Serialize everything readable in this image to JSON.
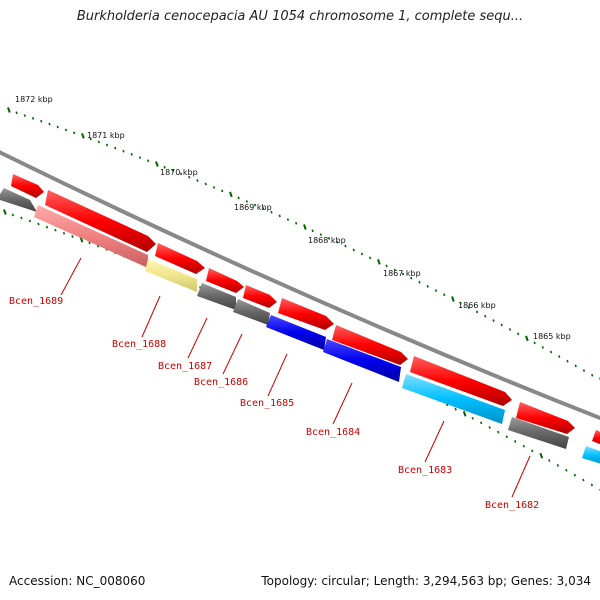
{
  "title": "Burkholderia cenocepacia AU 1054 chromosome 1, complete sequ...",
  "footer": {
    "accession": "Accession: NC_008060",
    "topology": "Topology: circular; Length: 3,294,563 bp; Genes: 3,034"
  },
  "ruler": [
    "1872 kbp",
    "1871 kbp",
    "1870 kbp",
    "1869 kbp",
    "1868 kbp",
    "1867 kbp",
    "1866 kbp",
    "1865 kbp"
  ],
  "gene_labels": [
    "Bcen_1689",
    "Bcen_1688",
    "Bcen_1687",
    "Bcen_1686",
    "Bcen_1685",
    "Bcen_1684",
    "Bcen_1683",
    "Bcen_1682"
  ],
  "colors": {
    "backbone": "#888888",
    "forward": "#ff0000",
    "reverse_gray": "#666666",
    "pink": "#f08080",
    "khaki": "#f0e68c",
    "blue": "#0000ee",
    "cyan": "#00bfff",
    "tick": "#006400",
    "label": "#cc0000"
  }
}
